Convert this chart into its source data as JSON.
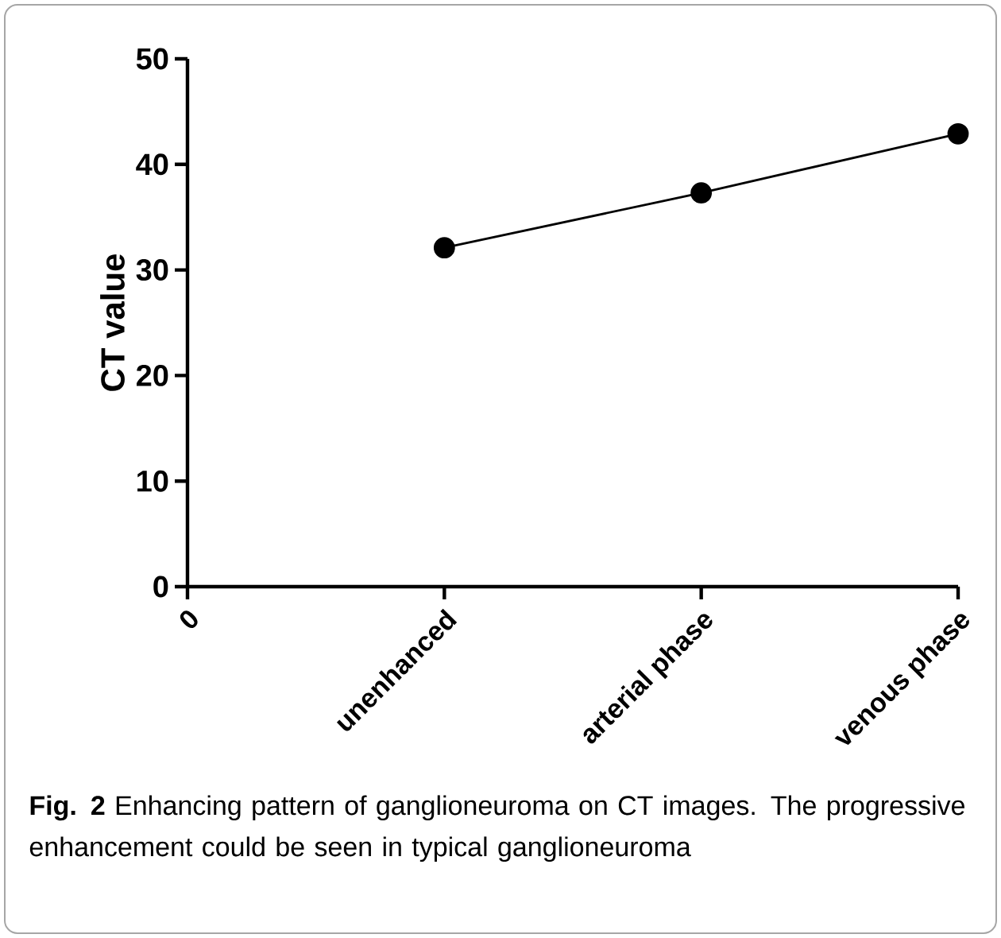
{
  "chart_data": {
    "type": "line",
    "ylabel": "CT value",
    "categories": [
      "0",
      "unenhanced",
      "arterial phase",
      "venous phase"
    ],
    "series": [
      {
        "color": "#000000",
        "values": [
          null,
          32.1,
          37.3,
          42.9
        ]
      }
    ],
    "ylim": [
      0,
      50
    ],
    "yticks": [
      0,
      10,
      20,
      30,
      40,
      50
    ],
    "marker": "circle",
    "line_style": "solid",
    "grid": false,
    "annotations": [
      "**Fig. 2** Enhancing pattern of ganglioneuroma on CT images. The progressive enhancement could be seen in typical ganglioneuroma"
    ]
  }
}
